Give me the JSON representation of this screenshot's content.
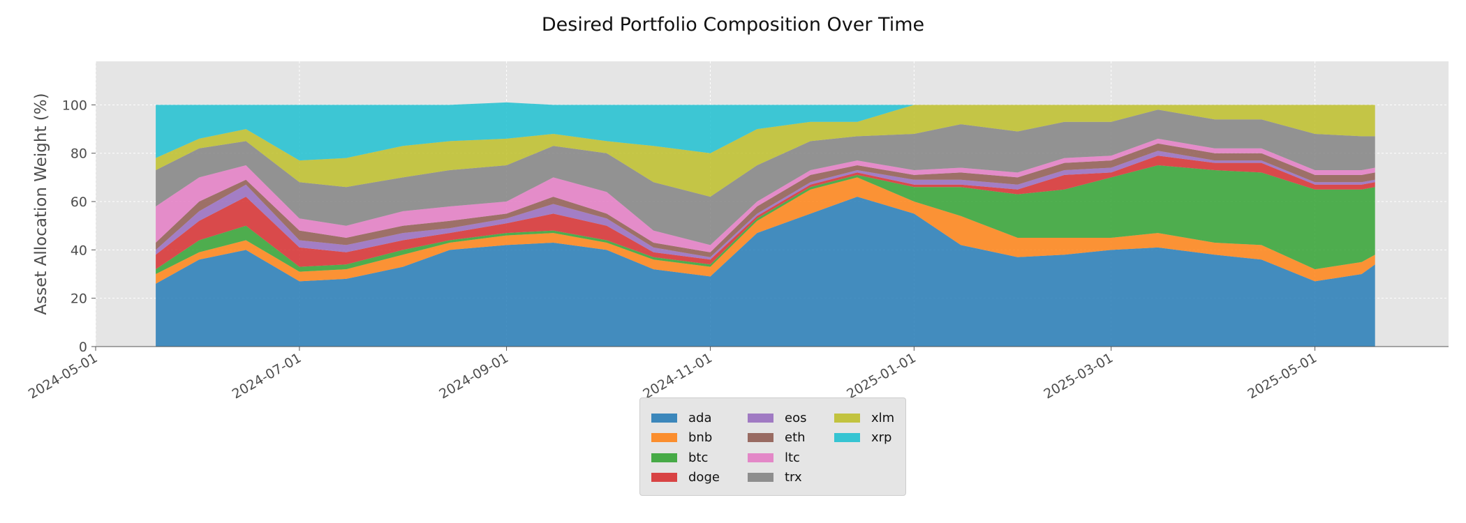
{
  "chart_data": {
    "type": "area",
    "stacked": true,
    "title": "Desired Portfolio Composition Over Time",
    "ylabel": "Asset Allocation Weight (%)",
    "xlabel": "",
    "x_range": [
      "2024-05-01",
      "2025-06-10"
    ],
    "ylim": [
      0,
      118
    ],
    "yticks": [
      0,
      20,
      40,
      60,
      80,
      100
    ],
    "xticks": [
      "2024-05-01",
      "2024-07-01",
      "2024-09-01",
      "2024-11-01",
      "2025-01-01",
      "2025-03-01",
      "2025-05-01"
    ],
    "grid": true,
    "legend": "bottom-center",
    "x": [
      "2024-05-19",
      "2024-06-01",
      "2024-06-15",
      "2024-07-01",
      "2024-07-15",
      "2024-08-01",
      "2024-08-15",
      "2024-09-01",
      "2024-09-15",
      "2024-10-01",
      "2024-10-15",
      "2024-11-01",
      "2024-11-15",
      "2024-12-01",
      "2024-12-15",
      "2025-01-01",
      "2025-01-15",
      "2025-02-01",
      "2025-02-15",
      "2025-03-01",
      "2025-03-15",
      "2025-04-01",
      "2025-04-15",
      "2025-05-01",
      "2025-05-15",
      "2025-05-19"
    ],
    "series": [
      {
        "name": "ada",
        "color": "#1f77b4",
        "values": [
          26,
          36,
          40,
          27,
          28,
          33,
          40,
          42,
          43,
          40,
          32,
          29,
          47,
          55,
          62,
          55,
          42,
          37,
          38,
          40,
          41,
          38,
          36,
          27,
          30,
          34
        ]
      },
      {
        "name": "bnb",
        "color": "#ff7f0e",
        "values": [
          4,
          3,
          4,
          4,
          4,
          5,
          3,
          4,
          4,
          3,
          4,
          4,
          5,
          10,
          8,
          5,
          12,
          8,
          7,
          5,
          6,
          5,
          6,
          5,
          5,
          4
        ]
      },
      {
        "name": "btc",
        "color": "#2ca02c",
        "values": [
          2,
          5,
          6,
          2,
          2,
          2,
          1,
          1,
          1,
          1,
          1,
          1,
          1,
          1,
          1,
          6,
          12,
          18,
          20,
          25,
          28,
          30,
          30,
          33,
          30,
          28
        ]
      },
      {
        "name": "doge",
        "color": "#d62728",
        "values": [
          6,
          8,
          12,
          8,
          5,
          4,
          3,
          4,
          7,
          6,
          2,
          2,
          1,
          1,
          1,
          1,
          1,
          2,
          6,
          2,
          4,
          3,
          4,
          2,
          2,
          2
        ]
      },
      {
        "name": "eos",
        "color": "#9467bd",
        "values": [
          2,
          4,
          5,
          3,
          3,
          3,
          2,
          2,
          4,
          3,
          2,
          1,
          1,
          1,
          1,
          2,
          2,
          2,
          2,
          2,
          2,
          1,
          1,
          1,
          1,
          1
        ]
      },
      {
        "name": "eth",
        "color": "#8c564b",
        "values": [
          3,
          4,
          2,
          4,
          3,
          3,
          3,
          2,
          3,
          2,
          2,
          2,
          3,
          3,
          2,
          2,
          3,
          3,
          3,
          3,
          3,
          3,
          3,
          3,
          3,
          3
        ]
      },
      {
        "name": "ltc",
        "color": "#e377c2",
        "values": [
          15,
          10,
          6,
          5,
          5,
          6,
          6,
          5,
          8,
          9,
          5,
          3,
          2,
          2,
          2,
          2,
          2,
          2,
          2,
          2,
          2,
          2,
          2,
          2,
          2,
          2
        ]
      },
      {
        "name": "trx",
        "color": "#7f7f7f",
        "values": [
          15,
          12,
          10,
          15,
          16,
          14,
          15,
          15,
          13,
          16,
          20,
          20,
          15,
          12,
          10,
          15,
          18,
          17,
          15,
          14,
          12,
          12,
          12,
          15,
          14,
          13
        ]
      },
      {
        "name": "xlm",
        "color": "#bcbd22",
        "values": [
          5,
          4,
          5,
          9,
          12,
          13,
          12,
          11,
          5,
          5,
          15,
          18,
          15,
          8,
          6,
          12,
          8,
          11,
          7,
          7,
          2,
          6,
          6,
          12,
          13,
          13
        ]
      },
      {
        "name": "xrp",
        "color": "#17becf",
        "values": [
          22,
          14,
          10,
          23,
          22,
          17,
          15,
          15,
          12,
          15,
          17,
          20,
          10,
          7,
          7,
          0,
          0,
          0,
          0,
          0,
          0,
          0,
          0,
          0,
          0,
          0
        ]
      }
    ]
  }
}
